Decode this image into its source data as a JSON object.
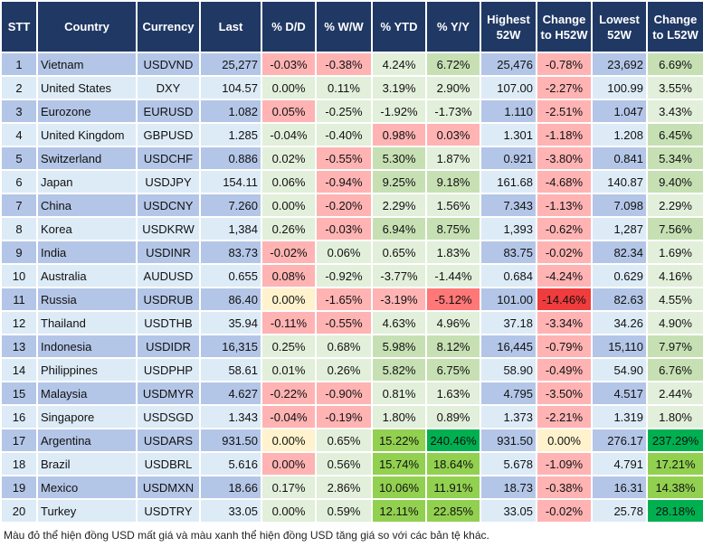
{
  "headers": [
    "STT",
    "Country",
    "Currency",
    "Last",
    "% D/D",
    "% W/W",
    "% YTD",
    "% Y/Y",
    "Highest 52W",
    "Change to H52W",
    "Lowest 52W",
    "Change to L52W"
  ],
  "colors": {
    "header": "#203864",
    "row_odd": "#b4c6e7",
    "row_even": "#ddebf7",
    "r1": "#ffb3b3",
    "r2": "#ff7777",
    "r3": "#f03c3c",
    "g1": "#e2efda",
    "g2": "#c6e0b4",
    "g3": "#92d050",
    "g4": "#00b050",
    "y": "#fff2cc"
  },
  "rows": [
    {
      "stt": "1",
      "country": "Vietnam",
      "currency": "USDVND",
      "last": "25,277",
      "dd": "-0.03%",
      "ww": "-0.38%",
      "ytd": "4.24%",
      "yy": "6.72%",
      "high": "25,476",
      "ch": "-0.78%",
      "low": "23,692",
      "cl": "6.69%",
      "shade": [
        "r1",
        "r1",
        "g1",
        "g2",
        "r1",
        "g2"
      ]
    },
    {
      "stt": "2",
      "country": "United States",
      "currency": "DXY",
      "last": "104.57",
      "dd": "0.00%",
      "ww": "0.11%",
      "ytd": "3.19%",
      "yy": "2.90%",
      "high": "107.00",
      "ch": "-2.27%",
      "low": "100.99",
      "cl": "3.55%",
      "shade": [
        "g1",
        "g1",
        "g1",
        "g1",
        "r1",
        "g1"
      ]
    },
    {
      "stt": "3",
      "country": "Eurozone",
      "currency": "EURUSD",
      "last": "1.082",
      "dd": "0.05%",
      "ww": "-0.25%",
      "ytd": "-1.92%",
      "yy": "-1.73%",
      "high": "1.110",
      "ch": "-2.51%",
      "low": "1.047",
      "cl": "3.43%",
      "shade": [
        "r1",
        "g1",
        "g1",
        "g1",
        "r1",
        "g1"
      ]
    },
    {
      "stt": "4",
      "country": "United Kingdom",
      "currency": "GBPUSD",
      "last": "1.285",
      "dd": "-0.04%",
      "ww": "-0.40%",
      "ytd": "0.98%",
      "yy": "0.03%",
      "high": "1.301",
      "ch": "-1.18%",
      "low": "1.208",
      "cl": "6.45%",
      "shade": [
        "g1",
        "g1",
        "r1",
        "r1",
        "r1",
        "g2"
      ]
    },
    {
      "stt": "5",
      "country": "Switzerland",
      "currency": "USDCHF",
      "last": "0.886",
      "dd": "0.02%",
      "ww": "-0.55%",
      "ytd": "5.30%",
      "yy": "1.87%",
      "high": "0.921",
      "ch": "-3.80%",
      "low": "0.841",
      "cl": "5.34%",
      "shade": [
        "g1",
        "r1",
        "g2",
        "g1",
        "r1",
        "g2"
      ]
    },
    {
      "stt": "6",
      "country": "Japan",
      "currency": "USDJPY",
      "last": "154.11",
      "dd": "0.06%",
      "ww": "-0.94%",
      "ytd": "9.25%",
      "yy": "9.18%",
      "high": "161.68",
      "ch": "-4.68%",
      "low": "140.87",
      "cl": "9.40%",
      "shade": [
        "g1",
        "r1",
        "g2",
        "g2",
        "r1",
        "g2"
      ]
    },
    {
      "stt": "7",
      "country": "China",
      "currency": "USDCNY",
      "last": "7.260",
      "dd": "0.00%",
      "ww": "-0.20%",
      "ytd": "2.29%",
      "yy": "1.56%",
      "high": "7.343",
      "ch": "-1.13%",
      "low": "7.098",
      "cl": "2.29%",
      "shade": [
        "g1",
        "r1",
        "g1",
        "g1",
        "r1",
        "g1"
      ]
    },
    {
      "stt": "8",
      "country": "Korea",
      "currency": "USDKRW",
      "last": "1,384",
      "dd": "0.26%",
      "ww": "-0.03%",
      "ytd": "6.94%",
      "yy": "8.75%",
      "high": "1,393",
      "ch": "-0.62%",
      "low": "1,287",
      "cl": "7.56%",
      "shade": [
        "g1",
        "r1",
        "g2",
        "g2",
        "r1",
        "g2"
      ]
    },
    {
      "stt": "9",
      "country": "India",
      "currency": "USDINR",
      "last": "83.73",
      "dd": "-0.02%",
      "ww": "0.06%",
      "ytd": "0.65%",
      "yy": "1.83%",
      "high": "83.75",
      "ch": "-0.02%",
      "low": "82.34",
      "cl": "1.69%",
      "shade": [
        "r1",
        "g1",
        "g1",
        "g1",
        "r1",
        "g1"
      ]
    },
    {
      "stt": "10",
      "country": "Australia",
      "currency": "AUDUSD",
      "last": "0.655",
      "dd": "0.08%",
      "ww": "-0.92%",
      "ytd": "-3.77%",
      "yy": "-1.44%",
      "high": "0.684",
      "ch": "-4.24%",
      "low": "0.629",
      "cl": "4.16%",
      "shade": [
        "r1",
        "g1",
        "g1",
        "g1",
        "r1",
        "g1"
      ]
    },
    {
      "stt": "11",
      "country": "Russia",
      "currency": "USDRUB",
      "last": "86.40",
      "dd": "0.00%",
      "ww": "-1.65%",
      "ytd": "-3.19%",
      "yy": "-5.12%",
      "high": "101.00",
      "ch": "-14.46%",
      "low": "82.63",
      "cl": "4.55%",
      "shade": [
        "y",
        "r1",
        "r1",
        "r2",
        "r3",
        "g1"
      ]
    },
    {
      "stt": "12",
      "country": "Thailand",
      "currency": "USDTHB",
      "last": "35.94",
      "dd": "-0.11%",
      "ww": "-0.55%",
      "ytd": "4.63%",
      "yy": "4.96%",
      "high": "37.18",
      "ch": "-3.34%",
      "low": "34.26",
      "cl": "4.90%",
      "shade": [
        "r1",
        "r1",
        "g1",
        "g1",
        "r1",
        "g1"
      ]
    },
    {
      "stt": "13",
      "country": "Indonesia",
      "currency": "USDIDR",
      "last": "16,315",
      "dd": "0.25%",
      "ww": "0.68%",
      "ytd": "5.98%",
      "yy": "8.12%",
      "high": "16,445",
      "ch": "-0.79%",
      "low": "15,110",
      "cl": "7.97%",
      "shade": [
        "g1",
        "g1",
        "g2",
        "g2",
        "r1",
        "g2"
      ]
    },
    {
      "stt": "14",
      "country": "Philippines",
      "currency": "USDPHP",
      "last": "58.61",
      "dd": "0.01%",
      "ww": "0.26%",
      "ytd": "5.82%",
      "yy": "6.75%",
      "high": "58.90",
      "ch": "-0.49%",
      "low": "54.90",
      "cl": "6.76%",
      "shade": [
        "g1",
        "g1",
        "g2",
        "g2",
        "r1",
        "g2"
      ]
    },
    {
      "stt": "15",
      "country": "Malaysia",
      "currency": "USDMYR",
      "last": "4.627",
      "dd": "-0.22%",
      "ww": "-0.90%",
      "ytd": "0.81%",
      "yy": "1.63%",
      "high": "4.795",
      "ch": "-3.50%",
      "low": "4.517",
      "cl": "2.44%",
      "shade": [
        "r1",
        "r1",
        "g1",
        "g1",
        "r1",
        "g1"
      ]
    },
    {
      "stt": "16",
      "country": "Singapore",
      "currency": "USDSGD",
      "last": "1.343",
      "dd": "-0.04%",
      "ww": "-0.19%",
      "ytd": "1.80%",
      "yy": "0.89%",
      "high": "1.373",
      "ch": "-2.21%",
      "low": "1.319",
      "cl": "1.80%",
      "shade": [
        "r1",
        "r1",
        "g1",
        "g1",
        "r1",
        "g1"
      ]
    },
    {
      "stt": "17",
      "country": "Argentina",
      "currency": "USDARS",
      "last": "931.50",
      "dd": "0.00%",
      "ww": "0.65%",
      "ytd": "15.22%",
      "yy": "240.46%",
      "high": "931.50",
      "ch": "0.00%",
      "low": "276.17",
      "cl": "237.29%",
      "shade": [
        "y",
        "g1",
        "g3",
        "g4",
        "y",
        "g4"
      ]
    },
    {
      "stt": "18",
      "country": "Brazil",
      "currency": "USDBRL",
      "last": "5.616",
      "dd": "0.00%",
      "ww": "0.56%",
      "ytd": "15.74%",
      "yy": "18.64%",
      "high": "5.678",
      "ch": "-1.09%",
      "low": "4.791",
      "cl": "17.21%",
      "shade": [
        "r1",
        "g1",
        "g3",
        "g3",
        "r1",
        "g3"
      ]
    },
    {
      "stt": "19",
      "country": "Mexico",
      "currency": "USDMXN",
      "last": "18.66",
      "dd": "0.17%",
      "ww": "2.86%",
      "ytd": "10.06%",
      "yy": "11.91%",
      "high": "18.73",
      "ch": "-0.38%",
      "low": "16.31",
      "cl": "14.38%",
      "shade": [
        "g1",
        "g1",
        "g3",
        "g3",
        "r1",
        "g3"
      ]
    },
    {
      "stt": "20",
      "country": "Turkey",
      "currency": "USDTRY",
      "last": "33.05",
      "dd": "0.00%",
      "ww": "0.59%",
      "ytd": "12.11%",
      "yy": "22.85%",
      "high": "33.05",
      "ch": "-0.02%",
      "low": "25.78",
      "cl": "28.18%",
      "shade": [
        "g1",
        "g1",
        "g3",
        "g3",
        "r1",
        "g4"
      ]
    }
  ],
  "footnote": "Màu đỏ thể hiện đồng USD mất giá và màu xanh thể hiện đồng USD tăng giá so với các bản tệ khác."
}
